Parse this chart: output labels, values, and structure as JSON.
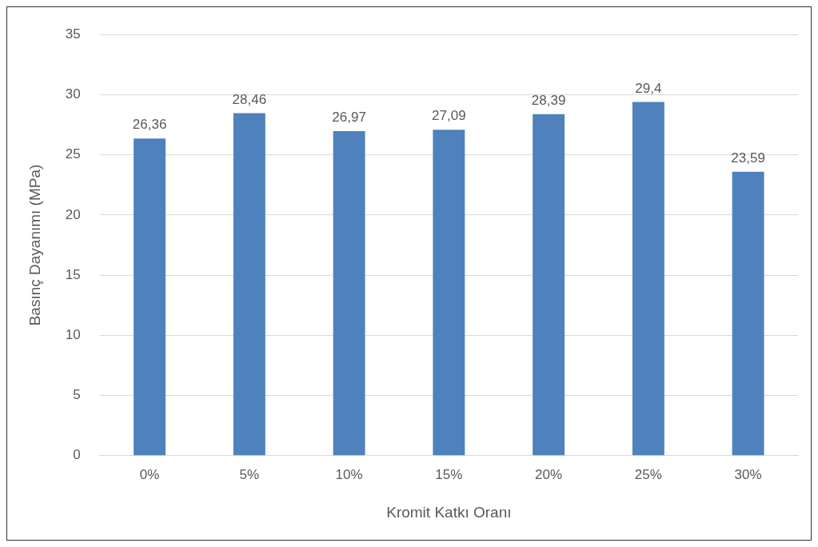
{
  "chart_data": {
    "type": "bar",
    "xlabel": "Kromit Katkı Oranı",
    "ylabel": "Basınç Dayanımı (MPa)",
    "categories": [
      "0%",
      "5%",
      "10%",
      "15%",
      "20%",
      "25%",
      "30%"
    ],
    "values": [
      26.36,
      28.46,
      26.97,
      27.09,
      28.39,
      29.4,
      23.59
    ],
    "value_labels": [
      "26,36",
      "28,46",
      "26,97",
      "27,09",
      "28,39",
      "29,4",
      "23,59"
    ],
    "color": "#4f81bd",
    "ylim": [
      0,
      35
    ],
    "yticks": [
      0,
      5,
      10,
      15,
      20,
      25,
      30,
      35
    ],
    "grid": "y",
    "legend": false
  }
}
